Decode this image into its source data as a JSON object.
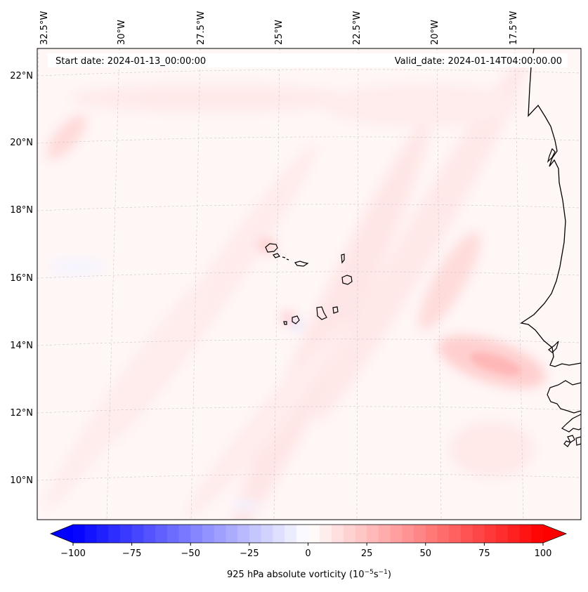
{
  "map": {
    "start_label": "Start date: 2024-01-13_00:00:00",
    "valid_label": "Valid_date: 2024-01-14T04:00:00.00",
    "lon_labels": [
      "32.5°W",
      "30°W",
      "27.5°W",
      "25°W",
      "22.5°W",
      "20°W",
      "17.5°W"
    ],
    "lat_labels": [
      "22°N",
      "20°N",
      "18°N",
      "16°N",
      "14°N",
      "12°N",
      "10°N"
    ],
    "projection": "conic (curved graticule)",
    "field": "925 hPa absolute vorticity"
  },
  "colorbar": {
    "ticks": [
      "−100",
      "−75",
      "−50",
      "−25",
      "0",
      "25",
      "50",
      "75",
      "100"
    ],
    "label_prefix": "925 hPa absolute vorticity (10",
    "label_exp1": "−5",
    "label_mid": "s",
    "label_exp2": "−1",
    "label_suffix": ")",
    "range": [
      -100,
      100
    ],
    "low_color": "#0000ff",
    "mid_color": "#ffffff",
    "high_color": "#ff0000"
  }
}
